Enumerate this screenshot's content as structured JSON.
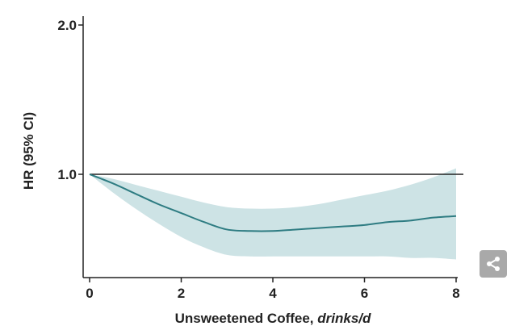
{
  "chart_data": {
    "type": "line",
    "xlabel_main": "Unsweetened Coffee, ",
    "xlabel_unit": "drinks/d",
    "ylabel": "HR (95% CI)",
    "xlim": [
      0,
      8
    ],
    "ylim_display": [
      0.4,
      2.0
    ],
    "x_ticks": [
      0,
      2,
      4,
      6,
      8
    ],
    "x_tick_labels": [
      "0",
      "2",
      "4",
      "6",
      "8"
    ],
    "y_ticks": [
      1.0,
      2.0
    ],
    "y_tick_labels": [
      "1.0",
      "2.0"
    ],
    "reference_line": 1.0,
    "grid": false,
    "series": [
      {
        "x": [
          0,
          0.5,
          1,
          1.5,
          2,
          2.5,
          3,
          3.5,
          4,
          4.5,
          5,
          5.5,
          6,
          6.5,
          7,
          7.5,
          8
        ],
        "y": [
          1.0,
          0.94,
          0.87,
          0.8,
          0.74,
          0.68,
          0.63,
          0.62,
          0.62,
          0.63,
          0.64,
          0.65,
          0.66,
          0.68,
          0.69,
          0.71,
          0.72
        ],
        "lower": [
          1.0,
          0.88,
          0.77,
          0.67,
          0.58,
          0.51,
          0.46,
          0.45,
          0.45,
          0.45,
          0.45,
          0.45,
          0.45,
          0.45,
          0.44,
          0.44,
          0.43
        ],
        "upper": [
          1.0,
          0.97,
          0.93,
          0.89,
          0.85,
          0.81,
          0.78,
          0.77,
          0.77,
          0.78,
          0.8,
          0.83,
          0.86,
          0.89,
          0.93,
          0.98,
          1.04
        ]
      }
    ],
    "colors": {
      "line": "#2e7c82",
      "band": "#cde3e5",
      "axis": "#222222",
      "reference": "#222222"
    }
  },
  "share_icon": "share-icon"
}
